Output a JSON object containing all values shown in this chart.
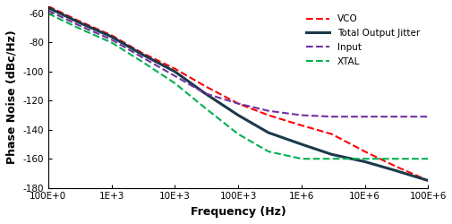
{
  "title": "",
  "xlabel": "Frequency (Hz)",
  "ylabel": "Phase Noise (dBc/Hz)",
  "xlim": [
    100,
    100000000
  ],
  "ylim": [
    -180,
    -55
  ],
  "yticks": [
    -180,
    -160,
    -140,
    -120,
    -100,
    -80,
    -60
  ],
  "background_color": "#ffffff",
  "series": {
    "vco": {
      "label": "VCO",
      "color": "#ff0000",
      "dashed": true,
      "linewidth": 1.5,
      "x": [
        100,
        300,
        1000,
        3000,
        10000,
        30000,
        100000,
        300000,
        1000000,
        3000000,
        10000000,
        30000000,
        100000000
      ],
      "y": [
        -55,
        -65,
        -75,
        -87,
        -98,
        -110,
        -122,
        -130,
        -137,
        -143,
        -155,
        -165,
        -175
      ]
    },
    "total": {
      "label": "Total Output Jitter",
      "color": "#1a3a4a",
      "dashed": false,
      "linewidth": 2.2,
      "x": [
        100,
        300,
        1000,
        3000,
        10000,
        30000,
        100000,
        300000,
        1000000,
        3000000,
        10000000,
        30000000,
        100000000
      ],
      "y": [
        -56,
        -66,
        -76,
        -88,
        -100,
        -115,
        -130,
        -142,
        -150,
        -157,
        -162,
        -168,
        -175
      ]
    },
    "input": {
      "label": "Input",
      "color": "#7030a0",
      "dashed": true,
      "linewidth": 1.5,
      "x": [
        100,
        300,
        1000,
        3000,
        10000,
        30000,
        100000,
        300000,
        1000000,
        3000000,
        10000000,
        30000000,
        100000000
      ],
      "y": [
        -58,
        -68,
        -78,
        -90,
        -103,
        -115,
        -122,
        -127,
        -130,
        -131,
        -131,
        -131,
        -131
      ]
    },
    "xtal": {
      "label": "XTAL",
      "color": "#00b050",
      "dashed": true,
      "linewidth": 1.5,
      "x": [
        100,
        300,
        1000,
        3000,
        10000,
        30000,
        100000,
        300000,
        1000000,
        3000000,
        10000000,
        30000000,
        100000000
      ],
      "y": [
        -60,
        -70,
        -80,
        -93,
        -108,
        -125,
        -143,
        -155,
        -160,
        -160,
        -160,
        -160,
        -160
      ]
    }
  },
  "xtick_labels": [
    "100E+0",
    "1E+3",
    "10E+3",
    "100E+3",
    "1E+6",
    "10E+6",
    "100E+6"
  ],
  "xtick_values": [
    100,
    1000,
    10000,
    100000,
    1000000,
    10000000,
    100000000
  ]
}
